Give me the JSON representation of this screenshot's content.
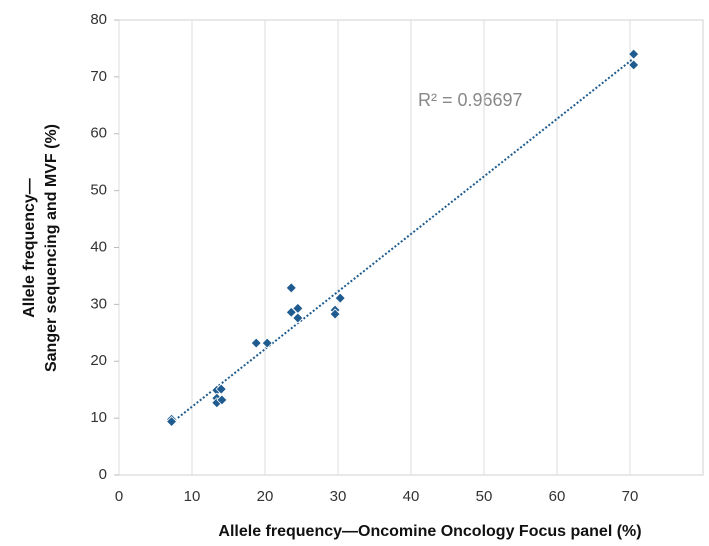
{
  "chart_data": {
    "type": "scatter",
    "x_label": "Allele frequency—Oncomine Oncology Focus panel (%)",
    "y_label": [
      "Allele frequency—",
      "Sanger sequencing and MVF (%)"
    ],
    "annotation": "R² = 0.96697",
    "color": "#1f5b8e",
    "trendline": true,
    "grid": true,
    "x": [
      7.2,
      7.2,
      13.4,
      14.0,
      13.4,
      13.4,
      14.1,
      18.8,
      20.3,
      23.6,
      23.6,
      24.5,
      24.5,
      29.6,
      29.6,
      30.3,
      70.5,
      70.5
    ],
    "values": [
      9.8,
      9.4,
      14.9,
      15.1,
      13.5,
      12.7,
      13.2,
      23.2,
      23.2,
      32.9,
      28.6,
      29.3,
      27.6,
      29.0,
      28.3,
      31.1,
      74.0,
      72.1
    ],
    "xlim": [
      0,
      80
    ],
    "xticks": [
      0,
      10,
      20,
      30,
      40,
      50,
      60,
      70
    ],
    "ylim": [
      0,
      80
    ],
    "yticks": [
      0,
      10,
      20,
      30,
      40,
      50,
      60,
      70,
      80
    ]
  }
}
